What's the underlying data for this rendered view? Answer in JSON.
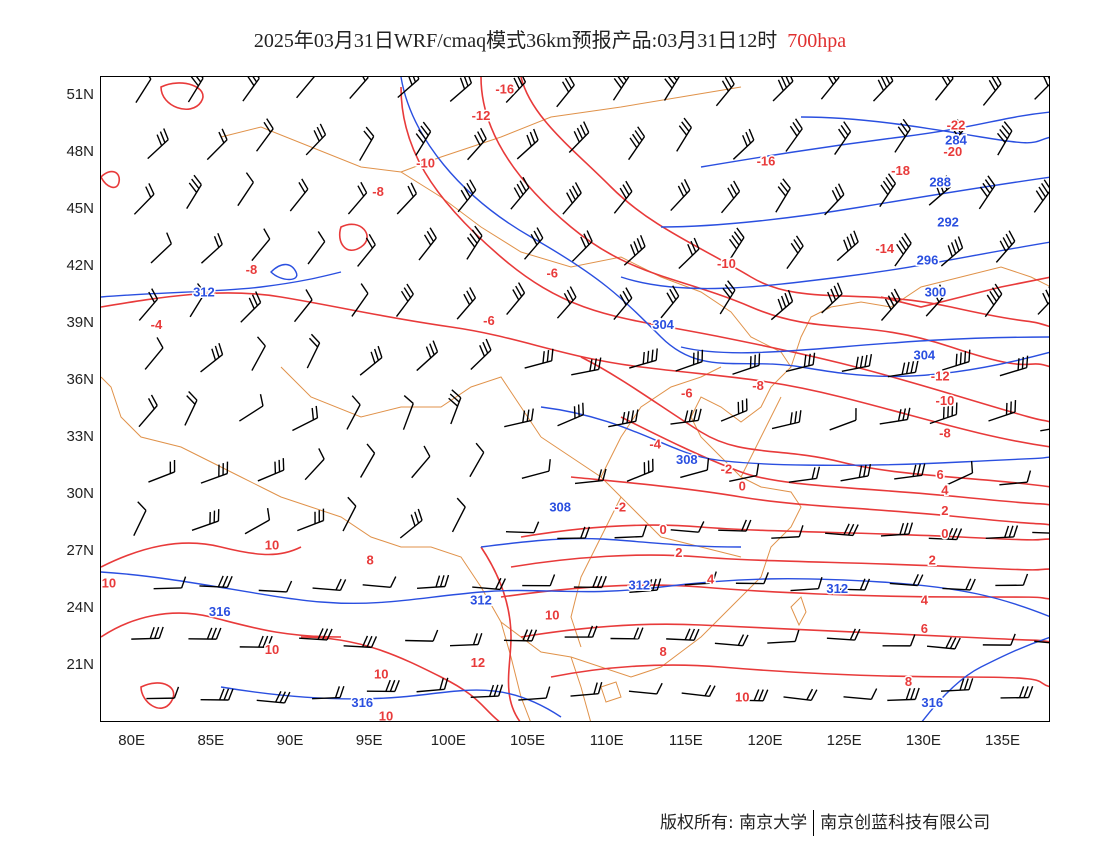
{
  "title": {
    "main": "2025年03月31日WRF/cmaq模式36km预报产品:03月31日12时",
    "level": "700hpa"
  },
  "axes": {
    "lat_labels": [
      "51N",
      "48N",
      "45N",
      "42N",
      "39N",
      "36N",
      "33N",
      "30N",
      "27N",
      "24N",
      "21N"
    ],
    "lat_values": [
      51,
      48,
      45,
      42,
      39,
      36,
      33,
      30,
      27,
      24,
      21
    ],
    "lon_labels": [
      "80E",
      "85E",
      "90E",
      "95E",
      "100E",
      "105E",
      "110E",
      "115E",
      "120E",
      "125E",
      "130E",
      "135E"
    ],
    "lon_values": [
      80,
      85,
      90,
      95,
      100,
      105,
      110,
      115,
      120,
      125,
      130,
      135
    ],
    "lon_range": [
      78,
      138
    ],
    "lat_range": [
      18,
      52
    ]
  },
  "colors": {
    "temperature": "#e83a3a",
    "height": "#2a4fe0",
    "boundary": "#e0924a",
    "barb": "#000000"
  },
  "temperature_labels": [
    {
      "text": "-16",
      "lon": 103.5,
      "lat": 51.4
    },
    {
      "text": "-12",
      "lon": 102,
      "lat": 50.0
    },
    {
      "text": "-10",
      "lon": 98.5,
      "lat": 47.5
    },
    {
      "text": "-8",
      "lon": 95.5,
      "lat": 46.0
    },
    {
      "text": "-8",
      "lon": 87.5,
      "lat": 41.9
    },
    {
      "text": "-4",
      "lon": 81.5,
      "lat": 39.0
    },
    {
      "text": "-6",
      "lon": 102.5,
      "lat": 39.2
    },
    {
      "text": "-6",
      "lon": 106.5,
      "lat": 41.7
    },
    {
      "text": "-10",
      "lon": 117.5,
      "lat": 42.2
    },
    {
      "text": "-16",
      "lon": 120.0,
      "lat": 47.6
    },
    {
      "text": "-18",
      "lon": 128.5,
      "lat": 47.1
    },
    {
      "text": "-22",
      "lon": 132.0,
      "lat": 49.5
    },
    {
      "text": "-20",
      "lon": 131.8,
      "lat": 48.1
    },
    {
      "text": "-14",
      "lon": 127.5,
      "lat": 43.0
    },
    {
      "text": "-12",
      "lon": 131.0,
      "lat": 36.3
    },
    {
      "text": "-10",
      "lon": 131.3,
      "lat": 35.0
    },
    {
      "text": "-8",
      "lon": 131.3,
      "lat": 33.3
    },
    {
      "text": "-8",
      "lon": 119.5,
      "lat": 35.8
    },
    {
      "text": "-6",
      "lon": 115.0,
      "lat": 35.4
    },
    {
      "text": "-4",
      "lon": 113.0,
      "lat": 32.7
    },
    {
      "text": "-2",
      "lon": 117.5,
      "lat": 31.4
    },
    {
      "text": "0",
      "lon": 118.5,
      "lat": 30.5
    },
    {
      "text": "-2",
      "lon": 110.8,
      "lat": 29.4
    },
    {
      "text": "0",
      "lon": 113.5,
      "lat": 28.2
    },
    {
      "text": "2",
      "lon": 114.5,
      "lat": 27.0
    },
    {
      "text": "4",
      "lon": 116.5,
      "lat": 25.6
    },
    {
      "text": "6",
      "lon": 131.0,
      "lat": 31.1
    },
    {
      "text": "4",
      "lon": 131.3,
      "lat": 30.3
    },
    {
      "text": "2",
      "lon": 131.3,
      "lat": 29.2
    },
    {
      "text": "0",
      "lon": 131.3,
      "lat": 28.0
    },
    {
      "text": "2",
      "lon": 130.5,
      "lat": 26.6
    },
    {
      "text": "4",
      "lon": 130.0,
      "lat": 24.5
    },
    {
      "text": "6",
      "lon": 130.0,
      "lat": 23.0
    },
    {
      "text": "8",
      "lon": 113.5,
      "lat": 21.8
    },
    {
      "text": "8",
      "lon": 129.0,
      "lat": 20.2
    },
    {
      "text": "10",
      "lon": 118.5,
      "lat": 19.4
    },
    {
      "text": "10",
      "lon": 88.8,
      "lat": 27.4
    },
    {
      "text": "10",
      "lon": 78.5,
      "lat": 25.4
    },
    {
      "text": "10",
      "lon": 88.8,
      "lat": 21.9
    },
    {
      "text": "10",
      "lon": 95.7,
      "lat": 20.6
    },
    {
      "text": "10",
      "lon": 96.0,
      "lat": 18.4
    },
    {
      "text": "10",
      "lon": 106.5,
      "lat": 23.7
    },
    {
      "text": "12",
      "lon": 101.8,
      "lat": 21.2
    },
    {
      "text": "8",
      "lon": 95.0,
      "lat": 26.6
    }
  ],
  "height_labels": [
    {
      "text": "312",
      "lon": 84.5,
      "lat": 40.7
    },
    {
      "text": "304",
      "lon": 113.5,
      "lat": 39.0
    },
    {
      "text": "308",
      "lon": 115.0,
      "lat": 31.9
    },
    {
      "text": "308",
      "lon": 107.0,
      "lat": 29.4
    },
    {
      "text": "312",
      "lon": 112.0,
      "lat": 25.3
    },
    {
      "text": "312",
      "lon": 102.0,
      "lat": 24.5
    },
    {
      "text": "312",
      "lon": 124.5,
      "lat": 25.1
    },
    {
      "text": "316",
      "lon": 85.5,
      "lat": 23.9
    },
    {
      "text": "316",
      "lon": 94.5,
      "lat": 19.1
    },
    {
      "text": "316",
      "lon": 130.5,
      "lat": 19.1
    },
    {
      "text": "304",
      "lon": 130.0,
      "lat": 37.4
    },
    {
      "text": "300",
      "lon": 130.7,
      "lat": 40.7
    },
    {
      "text": "296",
      "lon": 130.2,
      "lat": 42.4
    },
    {
      "text": "292",
      "lon": 131.5,
      "lat": 44.4
    },
    {
      "text": "288",
      "lon": 131.0,
      "lat": 46.5
    },
    {
      "text": "284",
      "lon": 132.0,
      "lat": 48.7
    }
  ],
  "footer": {
    "copyright": "版权所有: 南京大学",
    "company": "南京创蓝科技有限公司"
  }
}
